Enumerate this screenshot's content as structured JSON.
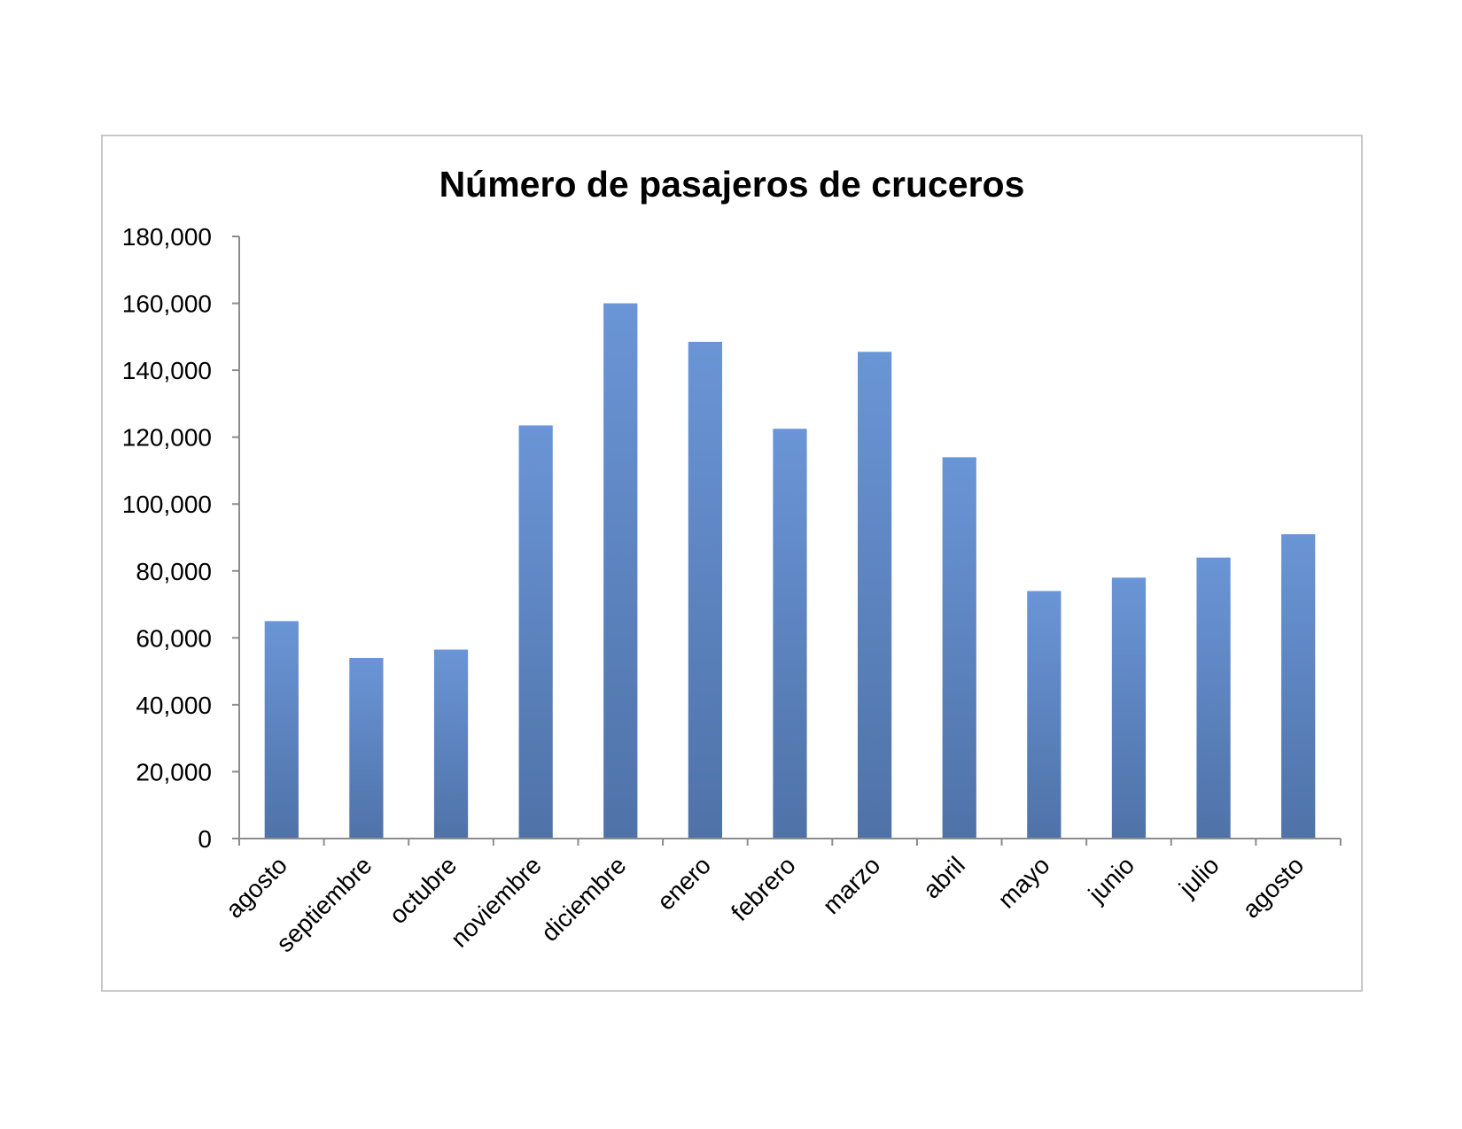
{
  "chart_data": {
    "type": "bar",
    "title": "Número de pasajeros de cruceros",
    "xlabel": "",
    "ylabel": "",
    "categories": [
      "agosto",
      "septiembre",
      "octubre",
      "noviembre",
      "diciembre",
      "enero",
      "febrero",
      "marzo",
      "abril",
      "mayo",
      "junio",
      "julio",
      "agosto"
    ],
    "values": [
      65000,
      54000,
      56500,
      123500,
      160000,
      148500,
      122500,
      145500,
      114000,
      74000,
      78000,
      84000,
      91000
    ],
    "ylim": [
      0,
      180000
    ],
    "yticks": [
      0,
      20000,
      40000,
      60000,
      80000,
      100000,
      120000,
      140000,
      160000,
      180000
    ],
    "ytick_labels": [
      "0",
      "20,000",
      "40,000",
      "60,000",
      "80,000",
      "100,000",
      "120,000",
      "140,000",
      "160,000",
      "180,000"
    ],
    "grid": false,
    "legend": "none",
    "bar_color_top": "#6a95d6",
    "bar_color_bottom": "#4f72a8",
    "axis_color": "#8c8c8c"
  }
}
